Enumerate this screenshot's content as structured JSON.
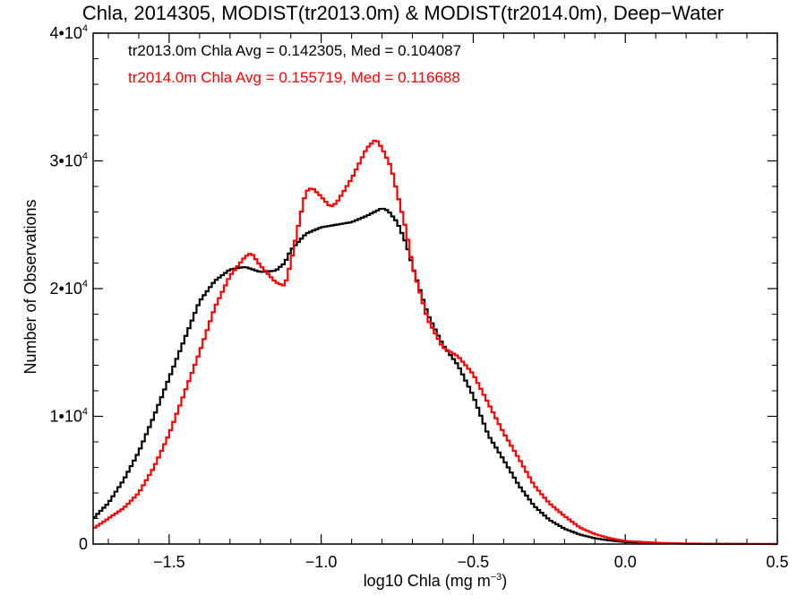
{
  "chart_data": {
    "type": "line",
    "title": "Chla, 2014305, MODIST(tr2013.0m) & MODIST(tr2014.0m), Deep−Water",
    "xlabel_main": "log10 Chla (mg m",
    "xlabel_sup": "−3",
    "xlabel_close": ")",
    "ylabel": "Number of Observations",
    "xlim": [
      -1.75,
      0.5
    ],
    "ylim": [
      0,
      40000
    ],
    "x_ticks": [
      {
        "value": -1.5,
        "label": "−1.5"
      },
      {
        "value": -1.0,
        "label": "−1.0"
      },
      {
        "value": -0.5,
        "label": "−0.5"
      },
      {
        "value": 0.0,
        "label": "0.0"
      },
      {
        "value": 0.5,
        "label": "0.5"
      }
    ],
    "y_ticks": [
      {
        "value": 0,
        "label": "0",
        "sup": ""
      },
      {
        "value": 10000,
        "label": "1•10",
        "sup": "4"
      },
      {
        "value": 20000,
        "label": "2•10",
        "sup": "4"
      },
      {
        "value": 30000,
        "label": "3•10",
        "sup": "4"
      },
      {
        "value": 40000,
        "label": "4•10",
        "sup": "4"
      }
    ],
    "step": 0.01,
    "series": [
      {
        "name": "tr2013.0m",
        "legend": "tr2013.0m Chla Avg = 0.142305, Med = 0.104087",
        "color": "#000000",
        "points": [
          [
            -1.75,
            2000
          ],
          [
            -1.7,
            3200
          ],
          [
            -1.65,
            5000
          ],
          [
            -1.6,
            7200
          ],
          [
            -1.55,
            10000
          ],
          [
            -1.5,
            13000
          ],
          [
            -1.45,
            16000
          ],
          [
            -1.4,
            19000
          ],
          [
            -1.35,
            20600
          ],
          [
            -1.3,
            21500
          ],
          [
            -1.25,
            21700
          ],
          [
            -1.2,
            21300
          ],
          [
            -1.15,
            21400
          ],
          [
            -1.12,
            22000
          ],
          [
            -1.1,
            23000
          ],
          [
            -1.05,
            24300
          ],
          [
            -1.0,
            24800
          ],
          [
            -0.95,
            25000
          ],
          [
            -0.9,
            25200
          ],
          [
            -0.85,
            25700
          ],
          [
            -0.8,
            26300
          ],
          [
            -0.78,
            26100
          ],
          [
            -0.75,
            25200
          ],
          [
            -0.72,
            23500
          ],
          [
            -0.7,
            21800
          ],
          [
            -0.67,
            19500
          ],
          [
            -0.65,
            18000
          ],
          [
            -0.6,
            15600
          ],
          [
            -0.55,
            14000
          ],
          [
            -0.5,
            11600
          ],
          [
            -0.45,
            8500
          ],
          [
            -0.4,
            6600
          ],
          [
            -0.35,
            4600
          ],
          [
            -0.3,
            3000
          ],
          [
            -0.25,
            1900
          ],
          [
            -0.2,
            1200
          ],
          [
            -0.15,
            750
          ],
          [
            -0.1,
            450
          ],
          [
            -0.05,
            280
          ],
          [
            0.0,
            160
          ],
          [
            0.1,
            70
          ],
          [
            0.2,
            30
          ],
          [
            0.3,
            12
          ],
          [
            0.4,
            5
          ],
          [
            0.5,
            2
          ]
        ]
      },
      {
        "name": "tr2014.0m",
        "legend": "tr2014.0m Chla Avg = 0.155719, Med = 0.116688",
        "color": "#ff0000",
        "points": [
          [
            -1.75,
            1200
          ],
          [
            -1.7,
            2000
          ],
          [
            -1.65,
            2800
          ],
          [
            -1.6,
            4000
          ],
          [
            -1.55,
            6000
          ],
          [
            -1.5,
            8600
          ],
          [
            -1.45,
            11800
          ],
          [
            -1.4,
            15000
          ],
          [
            -1.35,
            18500
          ],
          [
            -1.3,
            21000
          ],
          [
            -1.25,
            22500
          ],
          [
            -1.23,
            22800
          ],
          [
            -1.2,
            21800
          ],
          [
            -1.15,
            20500
          ],
          [
            -1.12,
            20200
          ],
          [
            -1.1,
            22000
          ],
          [
            -1.07,
            25500
          ],
          [
            -1.05,
            27600
          ],
          [
            -1.03,
            27900
          ],
          [
            -1.0,
            27200
          ],
          [
            -0.97,
            26400
          ],
          [
            -0.95,
            26700
          ],
          [
            -0.9,
            28600
          ],
          [
            -0.85,
            31000
          ],
          [
            -0.82,
            31700
          ],
          [
            -0.8,
            31000
          ],
          [
            -0.77,
            29500
          ],
          [
            -0.75,
            27500
          ],
          [
            -0.72,
            24500
          ],
          [
            -0.7,
            21800
          ],
          [
            -0.65,
            17600
          ],
          [
            -0.6,
            15400
          ],
          [
            -0.55,
            14700
          ],
          [
            -0.5,
            13300
          ],
          [
            -0.45,
            11000
          ],
          [
            -0.4,
            8700
          ],
          [
            -0.35,
            6700
          ],
          [
            -0.3,
            4600
          ],
          [
            -0.25,
            3200
          ],
          [
            -0.2,
            2200
          ],
          [
            -0.15,
            1300
          ],
          [
            -0.1,
            780
          ],
          [
            -0.05,
            450
          ],
          [
            0.0,
            240
          ],
          [
            0.1,
            100
          ],
          [
            0.2,
            40
          ],
          [
            0.3,
            15
          ],
          [
            0.4,
            6
          ],
          [
            0.5,
            2
          ]
        ]
      }
    ]
  }
}
